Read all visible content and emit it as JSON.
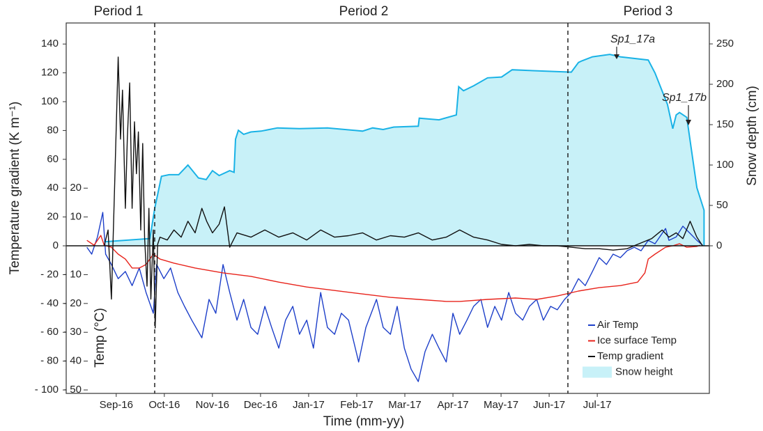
{
  "chart_data": {
    "type": "line",
    "xlabel": "Time (mm-yy)",
    "ylabel": "Temperature gradient (K m⁻¹)",
    "y2label": "Snow depth (cm)",
    "y3label": "Temp (°C)",
    "period_labels": [
      "Period 1",
      "Period 2",
      "Period 3"
    ],
    "annotations": [
      "Sp1_17a",
      "Sp1_17b"
    ],
    "legend": "lower right",
    "xlim": [
      7.96,
      21.33
    ],
    "xticks": [
      {
        "value": 9,
        "label": "Sep-16"
      },
      {
        "value": 10,
        "label": "Oct-16"
      },
      {
        "value": 11,
        "label": "Nov-16"
      },
      {
        "value": 12,
        "label": "Dec-16"
      },
      {
        "value": 13,
        "label": "Jan-17"
      },
      {
        "value": 14,
        "label": "Feb-17"
      },
      {
        "value": 15,
        "label": "Mar-17"
      },
      {
        "value": 16,
        "label": "Apr-17"
      },
      {
        "value": 17,
        "label": "May-17"
      },
      {
        "value": 18,
        "label": "Jun-17"
      },
      {
        "value": 19,
        "label": "Jul-17"
      }
    ],
    "ylim": [
      -102.4,
      154.6
    ],
    "yticks": [
      140,
      120,
      100,
      80,
      60,
      40,
      20,
      0,
      {
        "value": -20,
        "label": "- 20"
      },
      {
        "value": -40,
        "label": "- 40"
      },
      {
        "value": -60,
        "label": "- 60"
      },
      {
        "value": -80,
        "label": "- 80"
      },
      {
        "value": -100,
        "label": "- 100"
      }
    ],
    "y2lim": [
      -182.8,
      275.9
    ],
    "y2ticks": [
      0,
      50,
      100,
      150,
      200,
      250
    ],
    "y3lim": [
      -51.2,
      77.3
    ],
    "y3ticks": [
      20,
      10,
      {
        "value": -10,
        "label": "- 10"
      },
      {
        "value": -20,
        "label": "- 20"
      },
      {
        "value": -30,
        "label": "- 30"
      },
      {
        "value": -40,
        "label": "- 40"
      },
      {
        "value": -50,
        "label": "- 50"
      }
    ],
    "series": [
      {
        "name": "Air Temp",
        "color": "#1d3fc9",
        "axis": "y3",
        "x": [
          8.39,
          8.49,
          8.61,
          8.72,
          8.78,
          8.9,
          9.04,
          9.19,
          9.33,
          9.48,
          9.62,
          9.77,
          9.84,
          9.99,
          10.13,
          10.28,
          10.42,
          10.57,
          10.78,
          10.93,
          11.07,
          11.22,
          11.36,
          11.51,
          11.65,
          11.8,
          11.94,
          12.09,
          12.23,
          12.38,
          12.52,
          12.67,
          12.81,
          12.96,
          13.1,
          13.25,
          13.39,
          13.54,
          13.68,
          13.83,
          13.97,
          14.04,
          14.19,
          14.41,
          14.55,
          14.7,
          14.84,
          14.99,
          15.13,
          15.28,
          15.42,
          15.57,
          15.71,
          15.86,
          16.0,
          16.14,
          16.29,
          16.43,
          16.58,
          16.72,
          16.87,
          17.01,
          17.16,
          17.3,
          17.45,
          17.59,
          17.74,
          17.88,
          18.03,
          18.17,
          18.32,
          18.46,
          18.61,
          18.75,
          18.9,
          19.04,
          19.19,
          19.33,
          19.48,
          19.62,
          19.77,
          19.91,
          20.06,
          20.2,
          20.35,
          20.42,
          20.49,
          20.64,
          20.78,
          20.93,
          21.07,
          21.19
        ],
        "values": [
          -0.5,
          -2.9,
          3.1,
          11.6,
          -2.9,
          -6.5,
          -11.4,
          -8.9,
          -13.8,
          -7.7,
          -16.2,
          -23.4,
          -6.5,
          -11.4,
          -7.7,
          -16.2,
          -21.0,
          -25.8,
          -31.9,
          -18.6,
          -23.4,
          -6.5,
          -16.2,
          -25.8,
          -18.6,
          -28.3,
          -30.7,
          -21.0,
          -28.3,
          -35.5,
          -25.8,
          -21.0,
          -30.7,
          -25.8,
          -35.5,
          -16.2,
          -28.3,
          -30.7,
          -23.4,
          -25.8,
          -35.5,
          -40.3,
          -28.3,
          -18.6,
          -28.3,
          -30.7,
          -21.0,
          -35.5,
          -42.8,
          -47.1,
          -36.7,
          -30.7,
          -35.5,
          -40.3,
          -23.4,
          -30.7,
          -25.8,
          -21.0,
          -18.6,
          -28.3,
          -21.0,
          -25.8,
          -16.2,
          -23.4,
          -25.8,
          -21.0,
          -18.6,
          -25.8,
          -21.0,
          -22.2,
          -18.6,
          -16.2,
          -11.4,
          -13.8,
          -8.9,
          -4.1,
          -6.5,
          -2.9,
          -4.1,
          -1.7,
          -0.5,
          -1.7,
          1.9,
          0.7,
          4.3,
          6.0,
          1.9,
          3.1,
          6.8,
          4.3,
          1.9,
          0.2
        ]
      },
      {
        "name": "Ice surface Temp",
        "color": "#e8231b",
        "axis": "y3",
        "x": [
          8.39,
          8.54,
          8.68,
          8.75,
          8.9,
          9.04,
          9.19,
          9.33,
          9.48,
          9.62,
          9.77,
          9.91,
          10.2,
          10.64,
          11.22,
          11.8,
          12.38,
          12.96,
          13.54,
          14.12,
          14.7,
          15.28,
          15.86,
          16.14,
          16.72,
          17.3,
          17.74,
          18.17,
          18.61,
          19.04,
          19.48,
          19.84,
          19.99,
          20.06,
          20.2,
          20.42,
          20.57,
          20.71,
          20.86,
          21.07,
          21.14
        ],
        "values": [
          1.9,
          0.2,
          3.6,
          0.2,
          -0.5,
          -2.9,
          -4.6,
          -7.7,
          -7.7,
          -6.5,
          -2.9,
          -4.6,
          -6.0,
          -7.7,
          -9.4,
          -10.6,
          -12.6,
          -14.3,
          -15.5,
          -16.7,
          -17.9,
          -18.6,
          -19.3,
          -19.3,
          -18.6,
          -18.1,
          -18.6,
          -17.4,
          -15.7,
          -14.5,
          -13.8,
          -12.6,
          -9.4,
          -4.6,
          -2.9,
          -0.5,
          0,
          0.7,
          -0.5,
          -0.2,
          0.2
        ]
      },
      {
        "name": "Temp gradient",
        "color": "#111111",
        "axis": "y",
        "x": [
          8.75,
          8.83,
          8.9,
          8.97,
          9.04,
          9.09,
          9.13,
          9.19,
          9.23,
          9.28,
          9.33,
          9.38,
          9.42,
          9.46,
          9.51,
          9.55,
          9.59,
          9.64,
          9.68,
          9.72,
          9.77,
          9.81,
          9.86,
          9.91,
          10.06,
          10.2,
          10.35,
          10.49,
          10.64,
          10.78,
          10.88,
          11.0,
          11.14,
          11.25,
          11.36,
          11.51,
          11.8,
          12.09,
          12.38,
          12.67,
          12.96,
          13.25,
          13.54,
          13.83,
          14.12,
          14.41,
          14.7,
          14.99,
          15.28,
          15.57,
          15.86,
          16.14,
          16.43,
          16.72,
          17.01,
          17.3,
          17.59,
          17.88,
          18.17,
          18.46,
          18.75,
          19.04,
          19.33,
          19.62,
          19.91,
          20.13,
          20.35,
          20.49,
          20.64,
          20.78,
          20.93,
          21.07,
          21.19
        ],
        "values": [
          0,
          11,
          -37,
          45,
          131,
          74,
          108,
          26,
          74,
          113,
          26,
          86,
          50,
          79,
          11,
          71,
          6,
          -28,
          26,
          -37,
          11,
          -57,
          1,
          6,
          4,
          11,
          6,
          17,
          9,
          26,
          17,
          9,
          15,
          27,
          -1,
          9,
          6,
          11,
          6,
          9,
          4,
          11,
          6,
          7,
          9,
          4,
          7,
          6,
          9,
          4,
          6,
          11,
          6,
          4,
          1,
          0,
          1,
          0,
          0,
          -1,
          -2,
          -2,
          -3,
          -2,
          2,
          5,
          11,
          6,
          9,
          5,
          17,
          6,
          0
        ]
      },
      {
        "name": "Snow height",
        "color": "#19b2e6",
        "fill_color": "#c8f1f8",
        "axis": "y2",
        "style": "area",
        "x": [
          8.75,
          9.7,
          9.8,
          9.94,
          10.1,
          10.3,
          10.49,
          10.71,
          10.87,
          11.0,
          11.14,
          11.36,
          11.45,
          11.48,
          11.54,
          11.65,
          11.8,
          12.01,
          12.35,
          12.81,
          13.39,
          14.12,
          14.33,
          14.55,
          14.77,
          15.28,
          15.3,
          15.71,
          16.07,
          16.12,
          16.22,
          16.43,
          16.72,
          17.01,
          17.23,
          17.59,
          18.46,
          18.61,
          18.68,
          18.9,
          19.26,
          19.48,
          20.06,
          20.2,
          20.46,
          20.57,
          20.64,
          20.71,
          20.86,
          21.07,
          21.22
        ],
        "values": [
          5,
          9,
          46,
          86,
          88,
          88,
          100,
          84,
          82,
          93,
          87,
          93,
          91,
          132,
          143,
          138,
          141,
          142,
          146,
          145,
          146,
          142,
          146,
          144,
          147,
          148,
          158,
          156,
          162,
          197,
          192,
          198,
          208,
          209,
          218,
          217,
          215,
          227,
          229,
          234,
          237,
          234,
          230,
          214,
          175,
          145,
          162,
          165,
          159,
          72,
          44
        ]
      }
    ]
  }
}
